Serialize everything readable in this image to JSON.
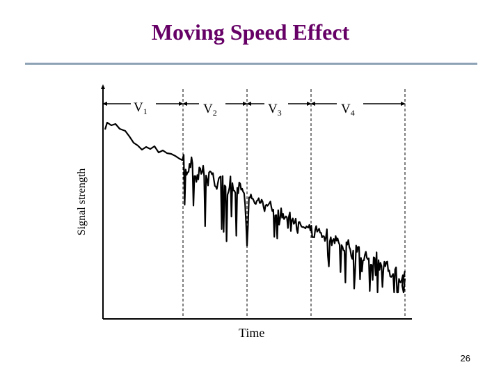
{
  "slide": {
    "title": "Moving Speed Effect",
    "page_number": "26"
  },
  "axes": {
    "y_label": "Signal strength",
    "x_label": "Time"
  },
  "segments": [
    {
      "letter": "V",
      "sub": "1"
    },
    {
      "letter": "V",
      "sub": "2"
    },
    {
      "letter": "V",
      "sub": "3"
    },
    {
      "letter": "V",
      "sub": "4"
    }
  ],
  "colors": {
    "title": "#660066",
    "rule": "#8da3b5",
    "ink": "#000000"
  }
}
